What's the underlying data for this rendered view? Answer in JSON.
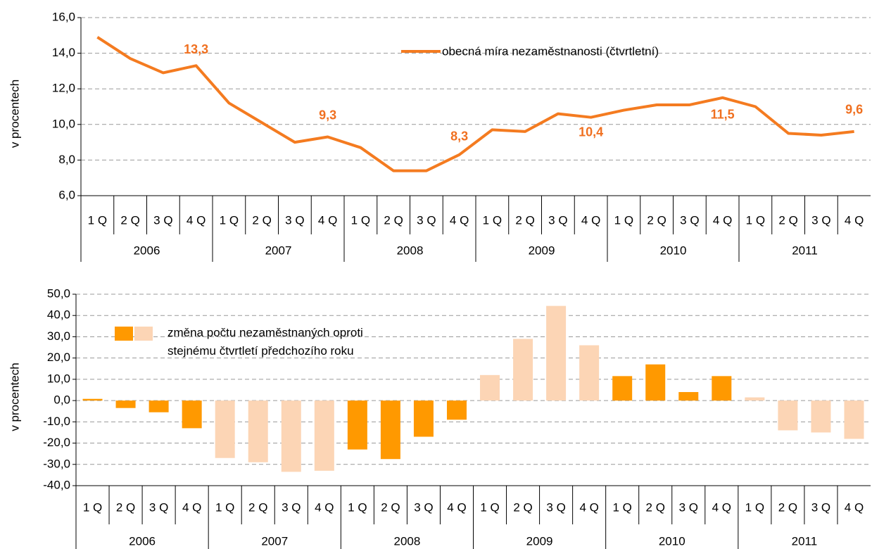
{
  "chart_data": [
    {
      "type": "line",
      "y_label": "v procentech",
      "categories": [
        "1 Q",
        "2 Q",
        "3 Q",
        "4 Q",
        "1 Q",
        "2 Q",
        "3 Q",
        "4 Q",
        "1 Q",
        "2 Q",
        "3 Q",
        "4 Q",
        "1 Q",
        "2 Q",
        "3 Q",
        "4 Q",
        "1 Q",
        "2 Q",
        "3 Q",
        "4 Q",
        "1 Q",
        "2 Q",
        "3 Q",
        "4 Q"
      ],
      "category_groups": [
        "2006",
        "2007",
        "2008",
        "2009",
        "2010",
        "2011"
      ],
      "series": [
        {
          "name": "obecná míra nezaměstnanosti (čtvrtletní)",
          "color": "#f47b20",
          "values": [
            14.9,
            13.7,
            12.9,
            13.3,
            11.2,
            10.1,
            9.0,
            9.3,
            8.7,
            7.4,
            7.4,
            8.3,
            9.7,
            9.6,
            10.6,
            10.4,
            10.8,
            11.1,
            11.1,
            11.5,
            11.0,
            9.5,
            9.4,
            9.6
          ],
          "value_labels": [
            null,
            null,
            null,
            "13,3",
            null,
            null,
            null,
            "9,3",
            null,
            null,
            null,
            "8,3",
            null,
            null,
            null,
            "10,4",
            null,
            null,
            null,
            "11,5",
            null,
            null,
            null,
            "9,6"
          ]
        }
      ],
      "ylim": [
        6,
        16
      ],
      "yticks": [
        {
          "value": 6,
          "label": "6,0"
        },
        {
          "value": 8,
          "label": "8,0"
        },
        {
          "value": 10,
          "label": "10,0"
        },
        {
          "value": 12,
          "label": "12,0"
        },
        {
          "value": 14,
          "label": "14,0"
        },
        {
          "value": 16,
          "label": "16,0"
        }
      ],
      "grid": true
    },
    {
      "type": "bar",
      "y_label": "v procentech",
      "categories": [
        "1 Q",
        "2 Q",
        "3 Q",
        "4 Q",
        "1 Q",
        "2 Q",
        "3 Q",
        "4 Q",
        "1 Q",
        "2 Q",
        "3 Q",
        "4 Q",
        "1 Q",
        "2 Q",
        "3 Q",
        "4 Q",
        "1 Q",
        "2 Q",
        "3 Q",
        "4 Q",
        "1 Q",
        "2 Q",
        "3 Q",
        "4 Q"
      ],
      "category_groups": [
        "2006",
        "2007",
        "2008",
        "2009",
        "2010",
        "2011"
      ],
      "series": [
        {
          "name": "změna počtu nezaměstnaných oproti stejnému čtvrtletí předchozího roku",
          "colors": [
            "#ff9900",
            "#fcd5b5"
          ],
          "values": [
            0.8,
            -3.5,
            -5.5,
            -13,
            -27,
            -29,
            -33.5,
            -33,
            -23,
            -27.5,
            -17,
            -9,
            12,
            29,
            44.5,
            26,
            11.5,
            17,
            4,
            11.5,
            1.5,
            -14,
            -15,
            -18
          ]
        }
      ],
      "ylim": [
        -40,
        50
      ],
      "yticks": [
        {
          "value": -40,
          "label": "-40,0"
        },
        {
          "value": -30,
          "label": "-30,0"
        },
        {
          "value": -20,
          "label": "-20,0"
        },
        {
          "value": -10,
          "label": "-10,0"
        },
        {
          "value": 0,
          "label": "0,0"
        },
        {
          "value": 10,
          "label": "10,0"
        },
        {
          "value": 20,
          "label": "20,0"
        },
        {
          "value": 30,
          "label": "30,0"
        },
        {
          "value": 40,
          "label": "40,0"
        },
        {
          "value": 50,
          "label": "50,0"
        }
      ],
      "grid": true
    }
  ]
}
